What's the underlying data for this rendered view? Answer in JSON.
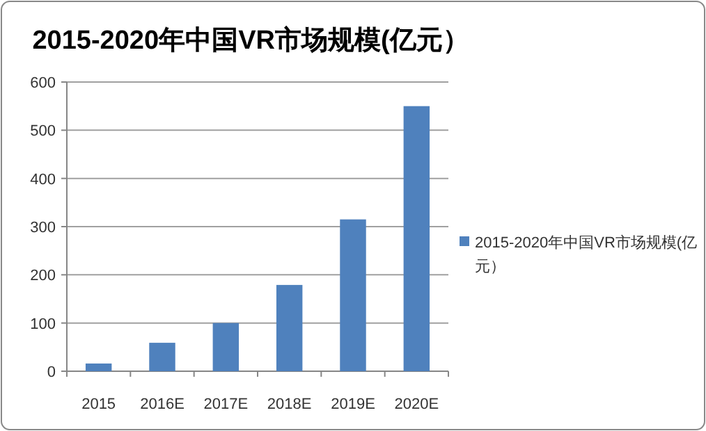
{
  "chart_data": {
    "type": "bar",
    "title": "2015-2020年中国VR市场规模(亿元）",
    "categories": [
      "2015",
      "2016E",
      "2017E",
      "2018E",
      "2019E",
      "2020E"
    ],
    "series": [
      {
        "name": "2015-2020年中国VR市场规模(亿元）",
        "color": "#4f81bd",
        "values": [
          16,
          59,
          100,
          179,
          315,
          550
        ]
      }
    ],
    "ylim": [
      0,
      600
    ],
    "yticks": [
      0,
      100,
      200,
      300,
      400,
      500,
      600
    ],
    "grid": "y",
    "legend": "right"
  }
}
